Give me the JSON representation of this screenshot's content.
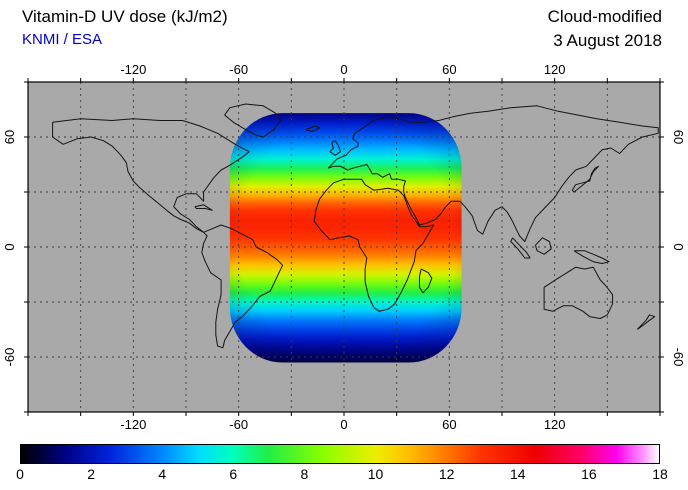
{
  "header": {
    "title": "Vitamin-D UV dose (kJ/m2)",
    "source": "KNMI / ESA",
    "mode": "Cloud-modified",
    "date": "3 August 2018"
  },
  "colors": {
    "source_text": "#0000cc",
    "map_background": "#a9a9a9",
    "coastline": "#141414",
    "gridline": "#3c3c3c",
    "frame": "#000000"
  },
  "chart_data": {
    "type": "heatmap",
    "title": "Vitamin-D UV dose (kJ/m2)",
    "source": "KNMI / ESA",
    "annotations": [
      "Cloud-modified",
      "3 August 2018"
    ],
    "projection": "equirectangular",
    "axes": {
      "lon_range": [
        -180,
        180
      ],
      "lat_range": [
        -90,
        90
      ],
      "lon_tick_labels": [
        -120,
        -60,
        0,
        60,
        120
      ],
      "lat_tick_labels": [
        60,
        0,
        -60
      ],
      "grid_step_deg": 30,
      "grid": true
    },
    "colorbar": {
      "min": 0,
      "max": 18,
      "unit": "kJ/m2",
      "label_values": [
        0,
        2,
        4,
        6,
        8,
        10,
        12,
        14,
        16,
        18
      ],
      "stops": [
        {
          "v": 0.0,
          "c": "#000000"
        },
        {
          "v": 1.2,
          "c": "#000080"
        },
        {
          "v": 2.5,
          "c": "#0022dd"
        },
        {
          "v": 4.0,
          "c": "#0088ff"
        },
        {
          "v": 5.0,
          "c": "#00ddff"
        },
        {
          "v": 6.0,
          "c": "#00ffbb"
        },
        {
          "v": 7.0,
          "c": "#22ee44"
        },
        {
          "v": 8.5,
          "c": "#88ff00"
        },
        {
          "v": 10.0,
          "c": "#eeee00"
        },
        {
          "v": 11.0,
          "c": "#ffbb00"
        },
        {
          "v": 12.0,
          "c": "#ff7700"
        },
        {
          "v": 13.0,
          "c": "#ff3300"
        },
        {
          "v": 14.5,
          "c": "#ee0000"
        },
        {
          "v": 15.8,
          "c": "#ff0066"
        },
        {
          "v": 16.8,
          "c": "#ff00ee"
        },
        {
          "v": 17.5,
          "c": "#ff88ff"
        },
        {
          "v": 18.0,
          "c": "#ffffff"
        }
      ]
    },
    "swath": {
      "lon_min": -65,
      "lon_max": 67,
      "lat_min": -63,
      "lat_max": 73,
      "corner_deg": 30,
      "lat_profile": [
        {
          "lat": 73,
          "dose": 1.3
        },
        {
          "lat": 68,
          "dose": 2.2
        },
        {
          "lat": 63,
          "dose": 3.0
        },
        {
          "lat": 58,
          "dose": 3.8
        },
        {
          "lat": 53,
          "dose": 4.6
        },
        {
          "lat": 48,
          "dose": 5.6
        },
        {
          "lat": 43,
          "dose": 6.8
        },
        {
          "lat": 38,
          "dose": 8.2
        },
        {
          "lat": 33,
          "dose": 9.8
        },
        {
          "lat": 28,
          "dose": 11.2
        },
        {
          "lat": 24,
          "dose": 12.3
        },
        {
          "lat": 20,
          "dose": 13.0
        },
        {
          "lat": 15,
          "dose": 13.5
        },
        {
          "lat": 10,
          "dose": 13.4
        },
        {
          "lat": 5,
          "dose": 13.0
        },
        {
          "lat": 0,
          "dose": 12.5
        },
        {
          "lat": -5,
          "dose": 11.8
        },
        {
          "lat": -10,
          "dose": 10.8
        },
        {
          "lat": -15,
          "dose": 9.6
        },
        {
          "lat": -20,
          "dose": 8.2
        },
        {
          "lat": -25,
          "dose": 7.0
        },
        {
          "lat": -30,
          "dose": 5.8
        },
        {
          "lat": -35,
          "dose": 4.8
        },
        {
          "lat": -40,
          "dose": 3.8
        },
        {
          "lat": -45,
          "dose": 3.0
        },
        {
          "lat": -50,
          "dose": 2.2
        },
        {
          "lat": -55,
          "dose": 1.5
        },
        {
          "lat": -60,
          "dose": 0.9
        },
        {
          "lat": -63,
          "dose": 0.6
        }
      ]
    }
  }
}
